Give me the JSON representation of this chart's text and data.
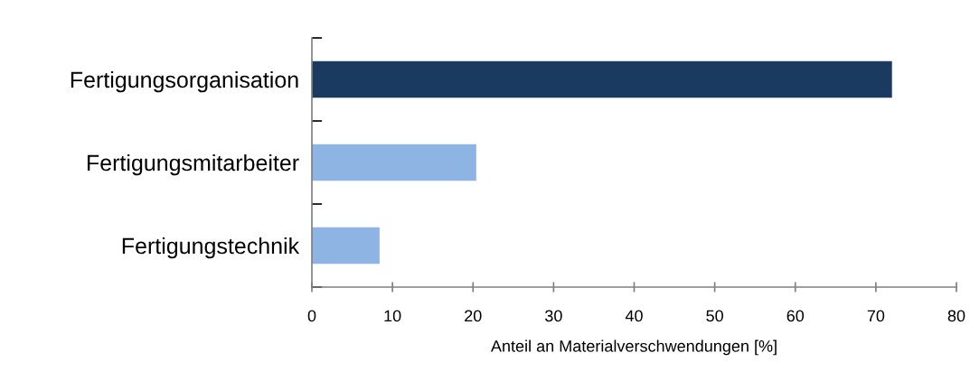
{
  "chart_data": {
    "type": "bar",
    "orientation": "horizontal",
    "categories": [
      "Fertigungsorganisation",
      "Fertigungsmitarbeiter",
      "Fertigungstechnik"
    ],
    "values": [
      72,
      20.4,
      8.4
    ],
    "colors": [
      "#1a3a5f",
      "#8eb4e3",
      "#8eb4e3"
    ],
    "xlabel": "Anteil an Materialverschwendungen [%]",
    "xlim": [
      0,
      80
    ],
    "xticks": [
      0,
      10,
      20,
      30,
      40,
      50,
      60,
      70,
      80
    ],
    "grid": false,
    "legend": false
  }
}
